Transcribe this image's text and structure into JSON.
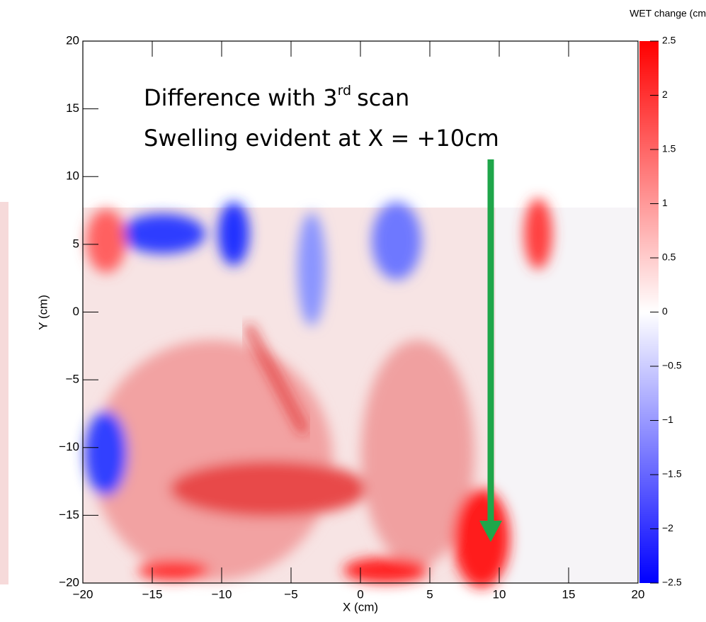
{
  "chart_data": {
    "type": "heatmap",
    "colorbar_title": "WET change (cm",
    "xlabel": "X (cm)",
    "ylabel": "Y (cm)",
    "xlim": [
      -20,
      20
    ],
    "ylim": [
      -20,
      20
    ],
    "xticks": [
      {
        "value": -20,
        "label": "−20"
      },
      {
        "value": -15,
        "label": "−15"
      },
      {
        "value": -10,
        "label": "−10"
      },
      {
        "value": -5,
        "label": "−5"
      },
      0,
      5,
      10,
      15,
      20
    ],
    "yticks": [
      {
        "value": -20,
        "label": "−20"
      },
      {
        "value": -15,
        "label": "−15"
      },
      {
        "value": -10,
        "label": "−10"
      },
      {
        "value": -5,
        "label": "−5"
      },
      0,
      5,
      10,
      15,
      20
    ],
    "zlim": [
      -2.5,
      2.5
    ],
    "zticks": [
      {
        "value": -2.5,
        "label": "−2.5"
      },
      {
        "value": -2,
        "label": "−2"
      },
      {
        "value": -1.5,
        "label": "−1.5"
      },
      {
        "value": -1,
        "label": "−1"
      },
      {
        "value": -0.5,
        "label": "−0.5"
      },
      0,
      0.5,
      1,
      1.5,
      2,
      2.5
    ],
    "colorscale": [
      "#0000ff",
      "#ffffff",
      "#ff0000"
    ],
    "annotation": {
      "line1": "Difference with 3",
      "superscript": "rd",
      "line1_end": "scan",
      "line2": "Swelling evident at X = +10cm"
    }
  }
}
